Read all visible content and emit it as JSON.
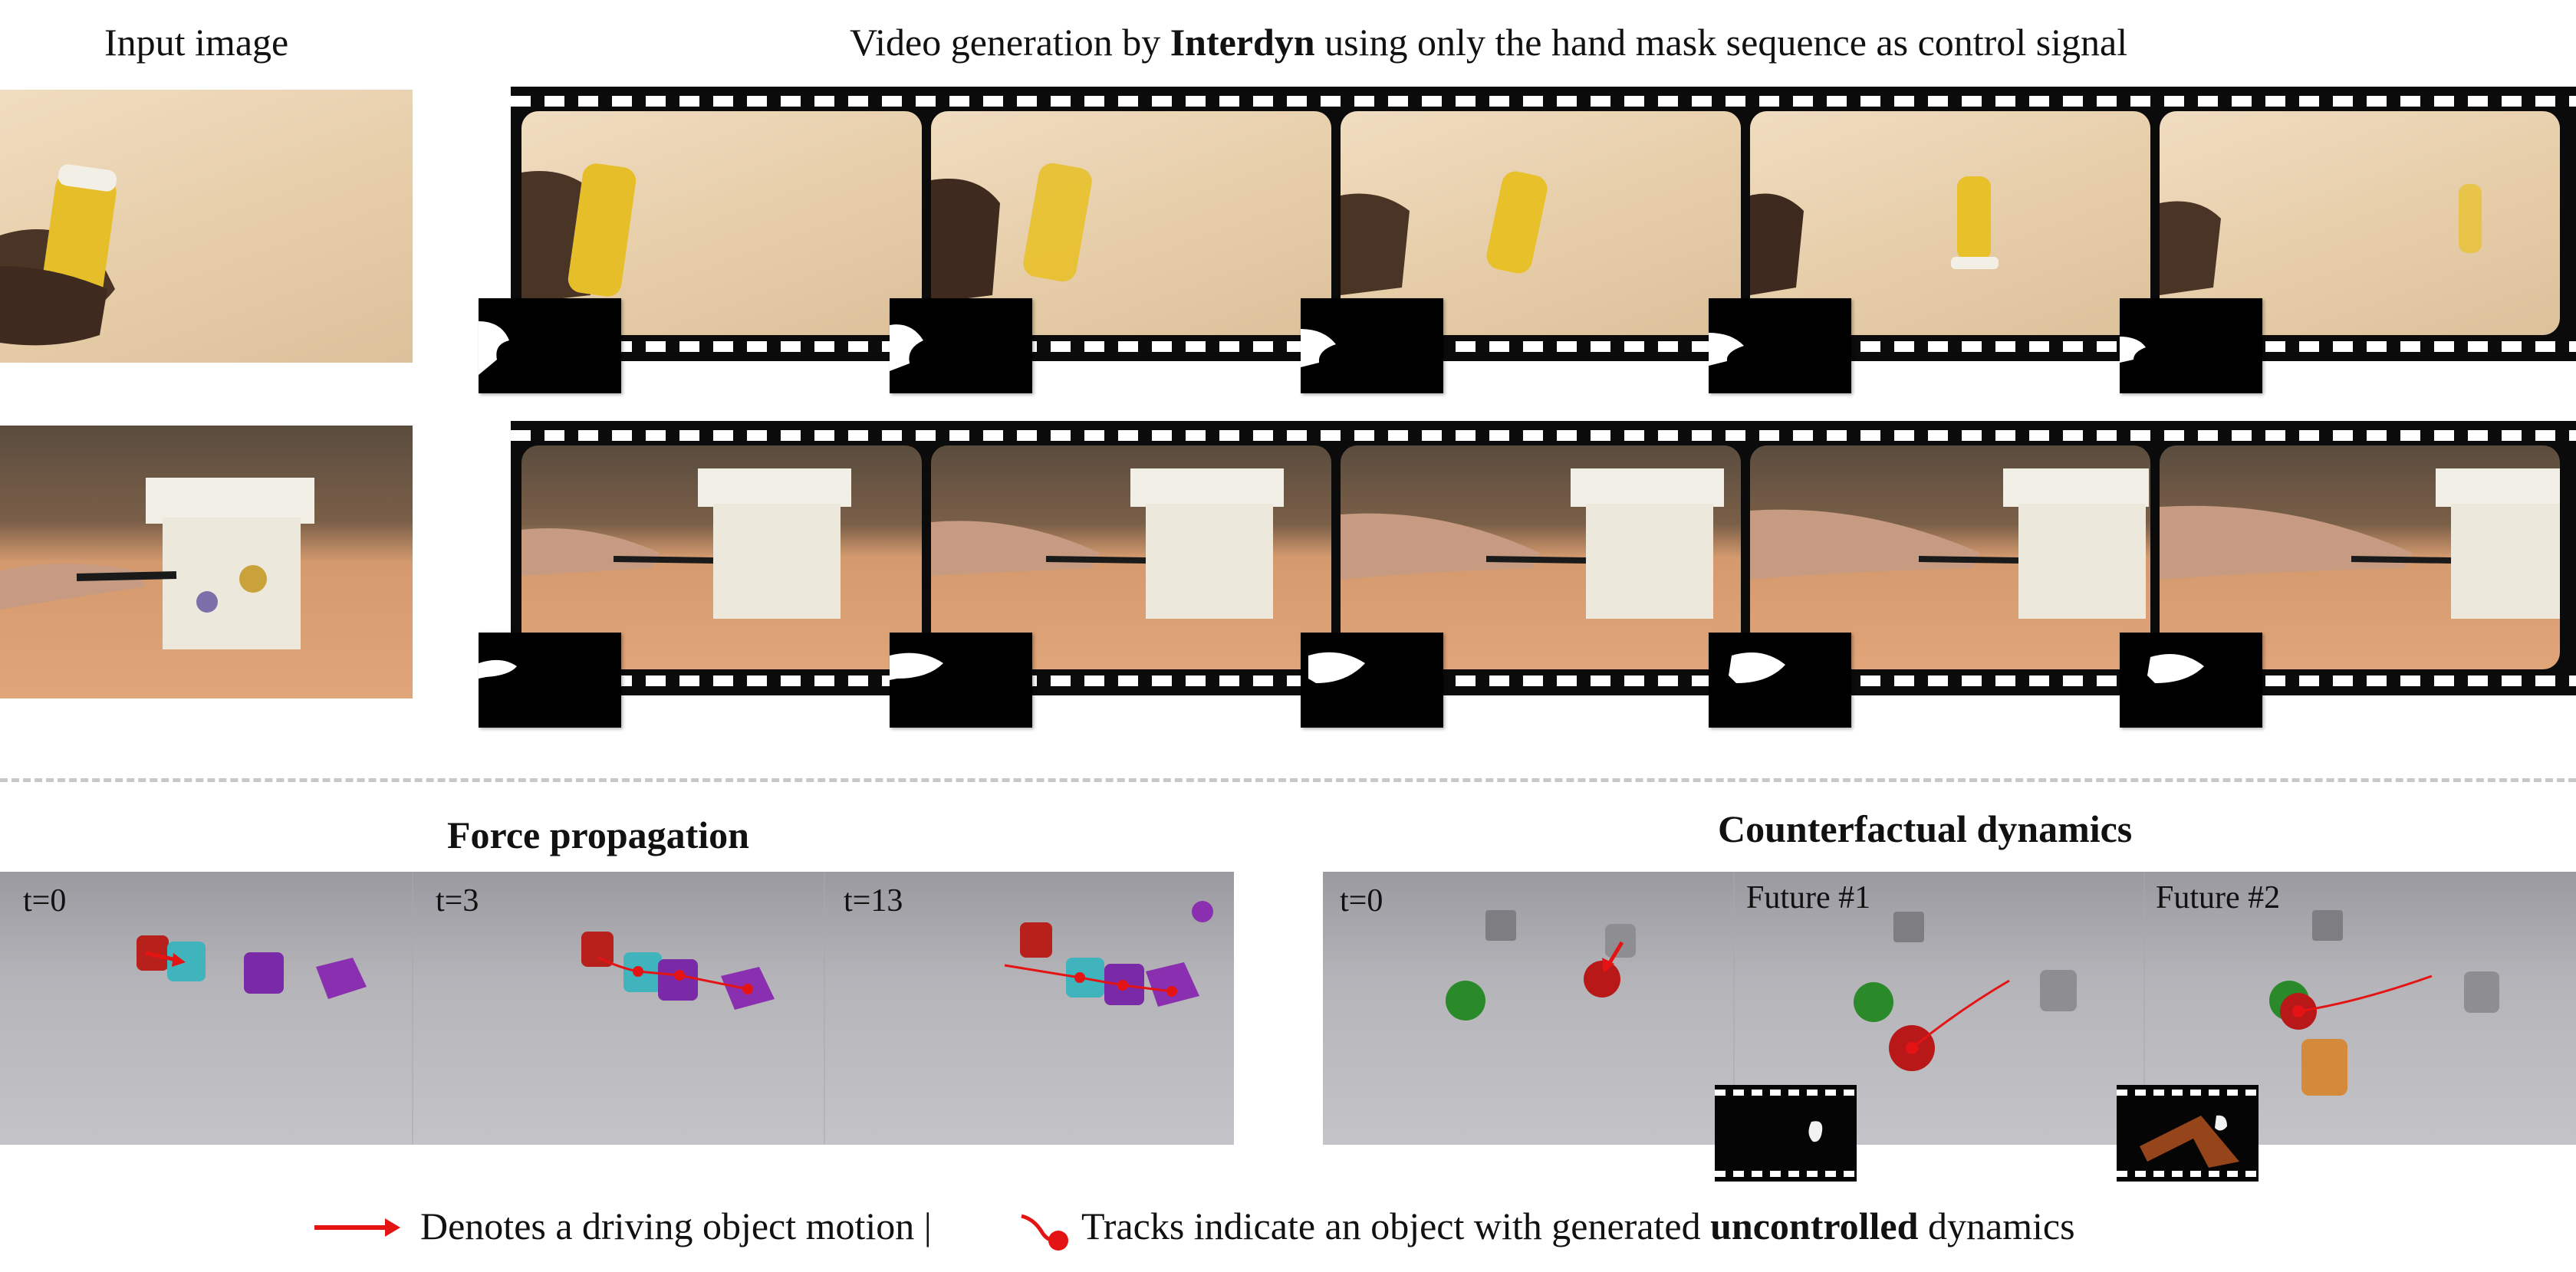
{
  "header": {
    "input_label": "Input image",
    "title_pre": "Video generation by ",
    "title_bold": "Interdyn",
    "title_post": " using only the hand mask sequence as control signal"
  },
  "rows": [
    {
      "name": "bottle",
      "frames": 5
    },
    {
      "name": "box",
      "frames": 5
    }
  ],
  "force": {
    "title": "Force propagation",
    "panels": [
      "t=0",
      "t=3",
      "t=13"
    ]
  },
  "counterfactual": {
    "title": "Counterfactual dynamics",
    "panels": [
      "t=0",
      "Future #1",
      "Future #2"
    ]
  },
  "legend": {
    "arrow_text": "Denotes a driving object motion |",
    "track_pre": "Tracks indicate an object with generated ",
    "track_bold": "uncontrolled",
    "track_post": " dynamics"
  },
  "colors": {
    "driving": "#e41414",
    "cyan": "#3fb4bc",
    "purple": "#8a2fb0",
    "green": "#2a8a2a",
    "bottle": "#e8c02a"
  }
}
